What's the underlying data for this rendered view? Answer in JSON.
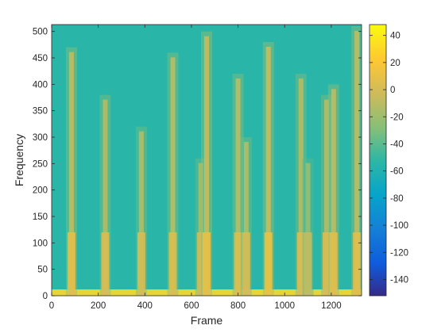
{
  "chart_data": {
    "type": "heatmap",
    "title": "",
    "xlabel": "Frame",
    "ylabel": "Frequency",
    "xlim": [
      0,
      1330
    ],
    "ylim": [
      0,
      513
    ],
    "xticks": [
      0,
      200,
      400,
      600,
      800,
      1000,
      1200
    ],
    "yticks": [
      0,
      50,
      100,
      150,
      200,
      250,
      300,
      350,
      400,
      450,
      500
    ],
    "colorbar": {
      "colormap": "parula",
      "clim": [
        -152,
        48
      ],
      "ticks": [
        40,
        20,
        0,
        -20,
        -40,
        -60,
        -80,
        -100,
        -120,
        -140
      ]
    },
    "background_level": -55,
    "low_frequency_band": {
      "max_frequency": 12,
      "level": 30
    },
    "events": [
      {
        "frame": 85,
        "level": -5,
        "reach_frequency": 470
      },
      {
        "frame": 230,
        "level": -10,
        "reach_frequency": 380
      },
      {
        "frame": 385,
        "level": -12,
        "reach_frequency": 320
      },
      {
        "frame": 520,
        "level": -8,
        "reach_frequency": 460
      },
      {
        "frame": 640,
        "level": -15,
        "reach_frequency": 260
      },
      {
        "frame": 665,
        "level": -3,
        "reach_frequency": 500
      },
      {
        "frame": 800,
        "level": -8,
        "reach_frequency": 420
      },
      {
        "frame": 835,
        "level": -12,
        "reach_frequency": 300
      },
      {
        "frame": 930,
        "level": -2,
        "reach_frequency": 480
      },
      {
        "frame": 1070,
        "level": -10,
        "reach_frequency": 420
      },
      {
        "frame": 1100,
        "level": -20,
        "reach_frequency": 260
      },
      {
        "frame": 1180,
        "level": -10,
        "reach_frequency": 380
      },
      {
        "frame": 1210,
        "level": -6,
        "reach_frequency": 400
      },
      {
        "frame": 1310,
        "level": -6,
        "reach_frequency": 510
      }
    ]
  }
}
